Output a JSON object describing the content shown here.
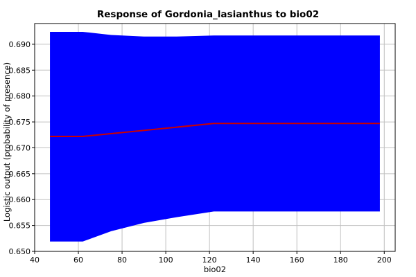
{
  "chart_data": {
    "type": "area",
    "title": "Response of Gordonia_lasianthus to bio02",
    "xlabel": "bio02",
    "ylabel": "Logistic output (probability of presence)",
    "xlim": [
      40,
      205
    ],
    "ylim": [
      0.65,
      0.694
    ],
    "x_ticks": [
      40,
      60,
      80,
      100,
      120,
      140,
      160,
      180,
      200
    ],
    "y_ticks": [
      0.65,
      0.655,
      0.66,
      0.665,
      0.67,
      0.675,
      0.68,
      0.685,
      0.69
    ],
    "grid": true,
    "series": [
      {
        "role": "band",
        "color": "#0000ff",
        "x": [
          47,
          62,
          75,
          90,
          105,
          122,
          140,
          160,
          180,
          198
        ],
        "upper": [
          0.6924,
          0.6924,
          0.6918,
          0.6915,
          0.6915,
          0.6917,
          0.6917,
          0.6917,
          0.6917,
          0.6917
        ],
        "lower": [
          0.6519,
          0.6519,
          0.6539,
          0.6555,
          0.6566,
          0.6577,
          0.6577,
          0.6577,
          0.6577,
          0.6577
        ]
      },
      {
        "role": "mean",
        "color": "#cc0000",
        "x": [
          47,
          62,
          122,
          140,
          160,
          180,
          198
        ],
        "y": [
          0.6722,
          0.6722,
          0.6747,
          0.6747,
          0.6747,
          0.6747,
          0.6747
        ]
      }
    ]
  }
}
